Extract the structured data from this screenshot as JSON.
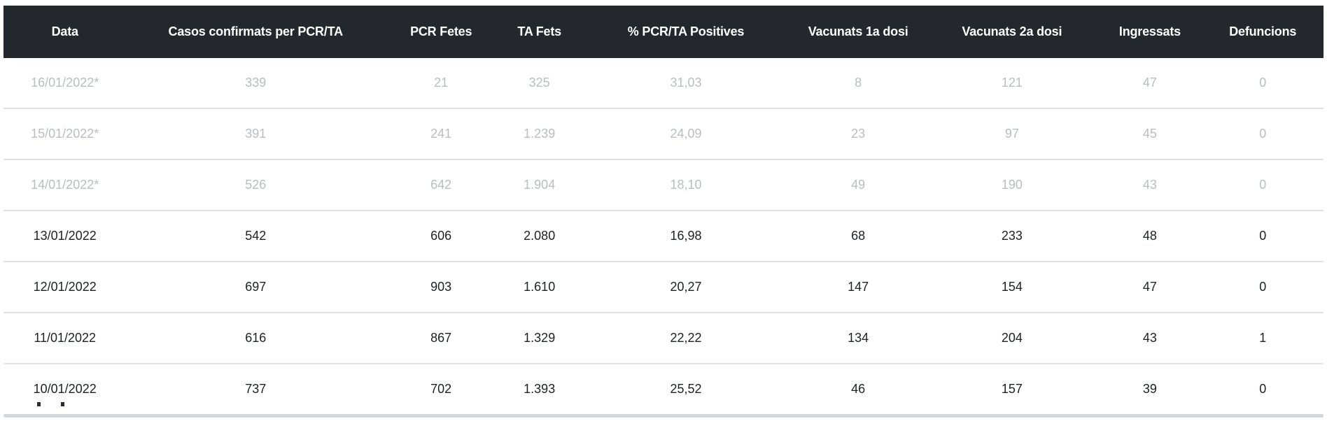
{
  "colors": {
    "header_bg": "#24272b",
    "header_text": "#ffffff",
    "row_text": "#1d2124",
    "provisional_row_text": "#b9bdc1",
    "row_divider": "#dfe2e5",
    "scrollbar": "#d4d7da",
    "page_bg": "#ffffff"
  },
  "table": {
    "columns": [
      "Data",
      "Casos confirmats per PCR/TA",
      "PCR Fetes",
      "TA Fets",
      "% PCR/TA Positives",
      "Vacunats 1a dosi",
      "Vacunats 2a dosi",
      "Ingressats",
      "Defuncions"
    ],
    "column_widths_pct": [
      9.3,
      19.6,
      8.5,
      6.4,
      15.8,
      10.3,
      13.0,
      7.9,
      9.2
    ],
    "rows": [
      {
        "provisional": true,
        "cells": [
          "16/01/2022*",
          "339",
          "21",
          "325",
          "31,03",
          "8",
          "121",
          "47",
          "0"
        ]
      },
      {
        "provisional": true,
        "cells": [
          "15/01/2022*",
          "391",
          "241",
          "1.239",
          "24,09",
          "23",
          "97",
          "45",
          "0"
        ]
      },
      {
        "provisional": true,
        "cells": [
          "14/01/2022*",
          "526",
          "642",
          "1.904",
          "18,10",
          "49",
          "190",
          "43",
          "0"
        ]
      },
      {
        "provisional": false,
        "cells": [
          "13/01/2022",
          "542",
          "606",
          "2.080",
          "16,98",
          "68",
          "233",
          "48",
          "0"
        ]
      },
      {
        "provisional": false,
        "cells": [
          "12/01/2022",
          "697",
          "903",
          "1.610",
          "20,27",
          "147",
          "154",
          "47",
          "0"
        ]
      },
      {
        "provisional": false,
        "cells": [
          "11/01/2022",
          "616",
          "867",
          "1.329",
          "22,22",
          "134",
          "204",
          "43",
          "1"
        ]
      },
      {
        "provisional": false,
        "cells": [
          "10/01/2022",
          "737",
          "702",
          "1.393",
          "25,52",
          "46",
          "157",
          "39",
          "0"
        ]
      }
    ]
  },
  "chart_data": {
    "type": "table",
    "title": "",
    "columns": [
      "Data",
      "Casos confirmats per PCR/TA",
      "PCR Fetes",
      "TA Fets",
      "% PCR/TA Positives",
      "Vacunats 1a dosi",
      "Vacunats 2a dosi",
      "Ingressats",
      "Defuncions"
    ],
    "rows": [
      [
        "16/01/2022*",
        339,
        21,
        325,
        31.03,
        8,
        121,
        47,
        0
      ],
      [
        "15/01/2022*",
        391,
        241,
        1239,
        24.09,
        23,
        97,
        45,
        0
      ],
      [
        "14/01/2022*",
        526,
        642,
        1904,
        18.1,
        49,
        190,
        43,
        0
      ],
      [
        "13/01/2022",
        542,
        606,
        2080,
        16.98,
        68,
        233,
        48,
        0
      ],
      [
        "12/01/2022",
        697,
        903,
        1610,
        20.27,
        147,
        154,
        47,
        0
      ],
      [
        "11/01/2022",
        616,
        867,
        1329,
        22.22,
        134,
        204,
        43,
        1
      ],
      [
        "10/01/2022",
        737,
        702,
        1393,
        25.52,
        46,
        157,
        39,
        0
      ]
    ]
  }
}
